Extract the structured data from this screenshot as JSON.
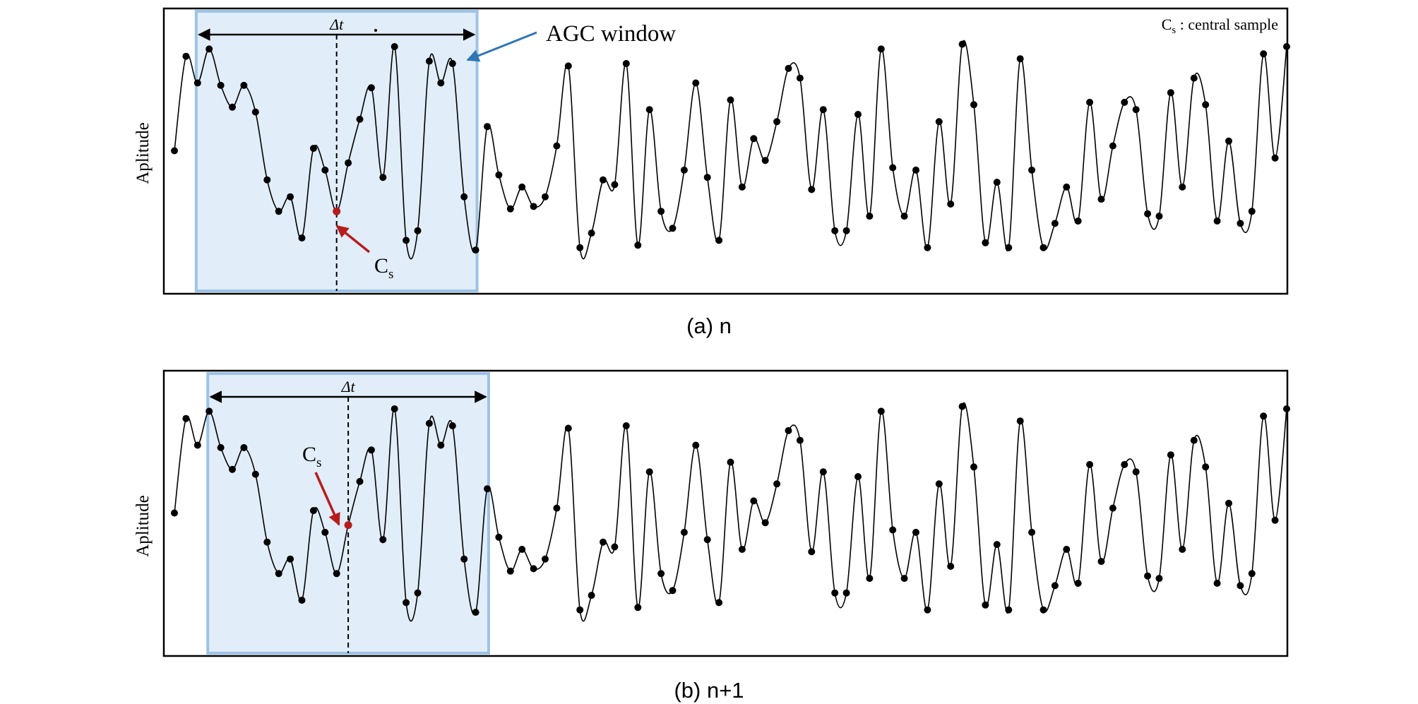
{
  "figure": {
    "panels": [
      {
        "id": "a",
        "caption": "(a) n",
        "ylabel": "Aplitude",
        "window_label": "AGC window",
        "delta_label": "Δt",
        "cs_label": "C",
        "cs_sub": "s",
        "window_start_index": 2,
        "window_end_index": 26,
        "central_index": 14,
        "legend_main": "C",
        "legend_sub": "s",
        "legend_text": " : central sample"
      },
      {
        "id": "b",
        "caption": "(b) n+1",
        "ylabel": "Aplitude",
        "delta_label": "Δt",
        "cs_label": "C",
        "cs_sub": "s",
        "window_start_index": 3,
        "window_end_index": 27,
        "central_index": 15
      }
    ],
    "samples": [
      0.5,
      0.89,
      0.78,
      0.92,
      0.77,
      0.68,
      0.77,
      0.66,
      0.38,
      0.25,
      0.31,
      0.14,
      0.51,
      0.42,
      0.25,
      0.45,
      0.63,
      0.76,
      0.39,
      0.93,
      0.13,
      0.17,
      0.87,
      0.78,
      0.86,
      0.31,
      0.09,
      0.6,
      0.4,
      0.26,
      0.35,
      0.27,
      0.31,
      0.52,
      0.85,
      0.1,
      0.16,
      0.38,
      0.36,
      0.86,
      0.11,
      0.67,
      0.25,
      0.18,
      0.42,
      0.78,
      0.39,
      0.13,
      0.71,
      0.35,
      0.55,
      0.46,
      0.62,
      0.84,
      0.8,
      0.34,
      0.67,
      0.17,
      0.17,
      0.65,
      0.23,
      0.92,
      0.43,
      0.23,
      0.42,
      0.1,
      0.62,
      0.28,
      0.94,
      0.69,
      0.12,
      0.37,
      0.1,
      0.88,
      0.42,
      0.1,
      0.2,
      0.35,
      0.21,
      0.7,
      0.3,
      0.52,
      0.7,
      0.67,
      0.24,
      0.23,
      0.74,
      0.35,
      0.8,
      0.69,
      0.21,
      0.54,
      0.2,
      0.25,
      0.9,
      0.47,
      0.93
    ]
  },
  "colors": {
    "window_fill": "#e1edf8",
    "window_border": "#9dc3e6",
    "arrow_blue": "#2e75b6",
    "cs_red": "#b71c1c",
    "ink": "#000000"
  }
}
